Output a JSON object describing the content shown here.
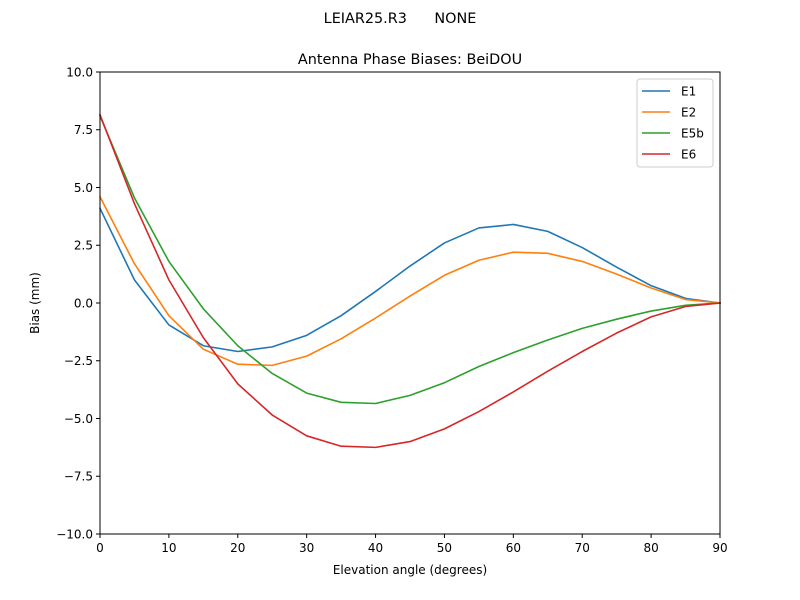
{
  "chart_data": {
    "type": "line",
    "suptitle": "LEIAR25.R3      NONE",
    "title": "Antenna Phase Biases: BeiDOU",
    "xlabel": "Elevation angle (degrees)",
    "ylabel": "Bias (mm)",
    "xlim": [
      0,
      90
    ],
    "ylim": [
      -10,
      10
    ],
    "xticks": [
      0,
      10,
      20,
      30,
      40,
      50,
      60,
      70,
      80,
      90
    ],
    "yticks": [
      -10.0,
      -7.5,
      -5.0,
      -2.5,
      0.0,
      2.5,
      5.0,
      7.5,
      10.0
    ],
    "ytick_labels": [
      "−10.0",
      "−7.5",
      "−5.0",
      "−2.5",
      "0.0",
      "2.5",
      "5.0",
      "7.5",
      "10.0"
    ],
    "grid": false,
    "legend_position": "top-right",
    "x": [
      0,
      5,
      10,
      15,
      20,
      25,
      30,
      35,
      40,
      45,
      50,
      55,
      60,
      65,
      70,
      75,
      80,
      85,
      90
    ],
    "series": [
      {
        "name": "E1",
        "color": "#1f77b4",
        "values": [
          4.1,
          1.0,
          -0.95,
          -1.85,
          -2.1,
          -1.9,
          -1.4,
          -0.55,
          0.5,
          1.6,
          2.6,
          3.25,
          3.4,
          3.1,
          2.4,
          1.55,
          0.75,
          0.2,
          0.0
        ]
      },
      {
        "name": "E2",
        "color": "#ff7f0e",
        "values": [
          4.6,
          1.7,
          -0.55,
          -2.0,
          -2.65,
          -2.7,
          -2.3,
          -1.55,
          -0.65,
          0.3,
          1.2,
          1.85,
          2.2,
          2.15,
          1.8,
          1.25,
          0.65,
          0.15,
          0.0
        ]
      },
      {
        "name": "E5b",
        "color": "#2ca02c",
        "values": [
          8.1,
          4.55,
          1.8,
          -0.25,
          -1.85,
          -3.05,
          -3.9,
          -4.3,
          -4.35,
          -4.0,
          -3.45,
          -2.75,
          -2.15,
          -1.6,
          -1.1,
          -0.7,
          -0.35,
          -0.1,
          0.0
        ]
      },
      {
        "name": "E6",
        "color": "#d62728",
        "values": [
          8.15,
          4.3,
          1.0,
          -1.5,
          -3.5,
          -4.85,
          -5.75,
          -6.2,
          -6.25,
          -6.0,
          -5.45,
          -4.7,
          -3.85,
          -2.95,
          -2.1,
          -1.3,
          -0.6,
          -0.15,
          0.0
        ]
      }
    ]
  }
}
